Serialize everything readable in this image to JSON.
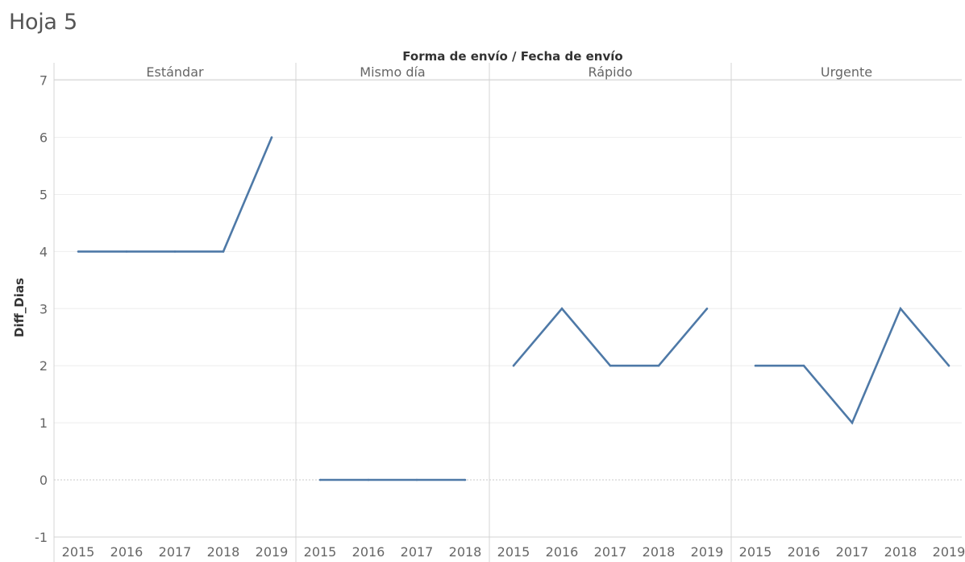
{
  "sheet": {
    "title": "Hoja 5"
  },
  "colors": {
    "line": "#4e79a7",
    "divider": "#d4d4d4",
    "axis_text": "#666666",
    "grid": "#eeeeee"
  },
  "chart_data": {
    "type": "line",
    "title": "Forma de envío  /  Fecha de envío",
    "ylabel": "Diff_Dias",
    "ylim": [
      -1,
      7
    ],
    "yticks": [
      "7",
      "6",
      "5",
      "4",
      "3",
      "2",
      "1",
      "0",
      "-1"
    ],
    "panels": [
      {
        "name": "Estándar",
        "x": [
          "2015",
          "2016",
          "2017",
          "2018",
          "2019"
        ],
        "values": [
          4,
          4,
          4,
          4,
          6
        ]
      },
      {
        "name": "Mismo día",
        "x": [
          "2015",
          "2016",
          "2017",
          "2018"
        ],
        "values": [
          0,
          0,
          0,
          0
        ]
      },
      {
        "name": "Rápido",
        "x": [
          "2015",
          "2016",
          "2017",
          "2018",
          "2019"
        ],
        "values": [
          2,
          3,
          2,
          2,
          3
        ]
      },
      {
        "name": "Urgente",
        "x": [
          "2015",
          "2016",
          "2017",
          "2018",
          "2019"
        ],
        "values": [
          2,
          2,
          1,
          3,
          2
        ]
      }
    ]
  }
}
